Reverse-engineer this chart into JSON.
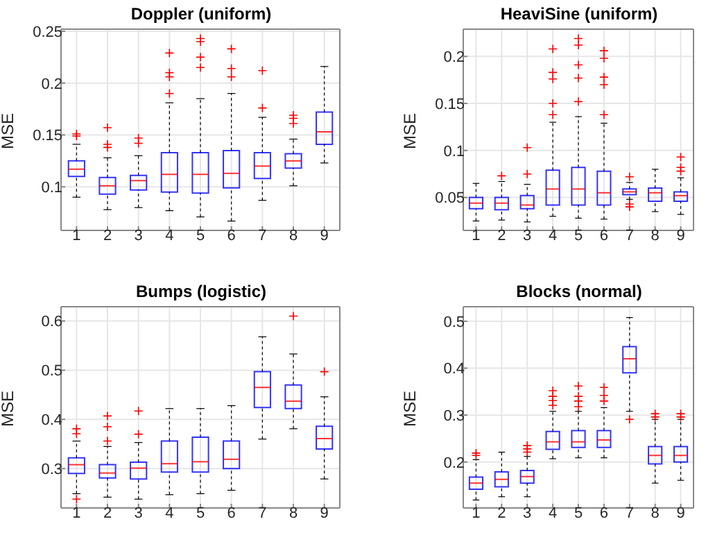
{
  "chart_data": [
    {
      "type": "box",
      "title": "Doppler (uniform)",
      "ylabel": "MSE",
      "categories": [
        "1",
        "2",
        "3",
        "4",
        "5",
        "6",
        "7",
        "8",
        "9"
      ],
      "ylim": [
        0.058,
        0.252
      ],
      "yticks": [
        0.1,
        0.15,
        0.2,
        0.25
      ],
      "grid": true,
      "marker": "cross",
      "series": [
        {
          "color": "#0000ff",
          "boxes": [
            {
              "low": 0.09,
              "q1": 0.11,
              "median": 0.117,
              "q3": 0.125,
              "high": 0.141,
              "outliers": [
                0.151,
                0.149
              ]
            },
            {
              "low": 0.078,
              "q1": 0.093,
              "median": 0.101,
              "q3": 0.109,
              "high": 0.128,
              "outliers": [
                0.157,
                0.141,
                0.138
              ]
            },
            {
              "low": 0.08,
              "q1": 0.097,
              "median": 0.106,
              "q3": 0.111,
              "high": 0.13,
              "outliers": [
                0.147,
                0.142
              ]
            },
            {
              "low": 0.077,
              "q1": 0.095,
              "median": 0.112,
              "q3": 0.133,
              "high": 0.181,
              "outliers": [
                0.229,
                0.21,
                0.206,
                0.19
              ]
            },
            {
              "low": 0.071,
              "q1": 0.094,
              "median": 0.112,
              "q3": 0.133,
              "high": 0.185,
              "outliers": [
                0.243,
                0.24,
                0.225,
                0.215
              ]
            },
            {
              "low": 0.067,
              "q1": 0.099,
              "median": 0.113,
              "q3": 0.135,
              "high": 0.19,
              "outliers": [
                0.233,
                0.214,
                0.206
              ]
            },
            {
              "low": 0.087,
              "q1": 0.108,
              "median": 0.12,
              "q3": 0.133,
              "high": 0.167,
              "outliers": [
                0.212,
                0.176
              ]
            },
            {
              "low": 0.101,
              "q1": 0.118,
              "median": 0.125,
              "q3": 0.132,
              "high": 0.146,
              "outliers": [
                0.169,
                0.166,
                0.161
              ]
            },
            {
              "low": 0.123,
              "q1": 0.141,
              "median": 0.153,
              "q3": 0.172,
              "high": 0.216
            }
          ]
        }
      ]
    },
    {
      "type": "box",
      "title": "HeaviSine (uniform)",
      "ylabel": "MSE",
      "categories": [
        "1",
        "2",
        "3",
        "4",
        "5",
        "6",
        "7",
        "8",
        "9"
      ],
      "ylim": [
        0.015,
        0.229
      ],
      "yticks": [
        0.05,
        0.1,
        0.15,
        0.2
      ],
      "grid": true,
      "marker": "cross",
      "series": [
        {
          "color": "#0000ff",
          "boxes": [
            {
              "low": 0.025,
              "q1": 0.038,
              "median": 0.044,
              "q3": 0.05,
              "high": 0.065
            },
            {
              "low": 0.026,
              "q1": 0.037,
              "median": 0.044,
              "q3": 0.05,
              "high": 0.067,
              "outliers": [
                0.073
              ]
            },
            {
              "low": 0.024,
              "q1": 0.038,
              "median": 0.042,
              "q3": 0.052,
              "high": 0.064,
              "outliers": [
                0.103,
                0.075
              ]
            },
            {
              "low": 0.03,
              "q1": 0.042,
              "median": 0.059,
              "q3": 0.079,
              "high": 0.13,
              "outliers": [
                0.208,
                0.183,
                0.176,
                0.15,
                0.138
              ]
            },
            {
              "low": 0.028,
              "q1": 0.042,
              "median": 0.059,
              "q3": 0.082,
              "high": 0.136,
              "outliers": [
                0.219,
                0.212,
                0.191,
                0.177,
                0.152
              ]
            },
            {
              "low": 0.027,
              "q1": 0.042,
              "median": 0.055,
              "q3": 0.078,
              "high": 0.129,
              "outliers": [
                0.206,
                0.198,
                0.178,
                0.17,
                0.138
              ]
            },
            {
              "low": 0.048,
              "q1": 0.053,
              "median": 0.056,
              "q3": 0.059,
              "high": 0.066,
              "outliers": [
                0.072,
                0.043,
                0.04
              ]
            },
            {
              "low": 0.035,
              "q1": 0.046,
              "median": 0.055,
              "q3": 0.06,
              "high": 0.08
            },
            {
              "low": 0.032,
              "q1": 0.046,
              "median": 0.052,
              "q3": 0.056,
              "high": 0.071,
              "outliers": [
                0.093,
                0.082,
                0.078
              ]
            }
          ]
        }
      ]
    },
    {
      "type": "box",
      "title": "Bumps (logistic)",
      "ylabel": "MSE",
      "categories": [
        "1",
        "2",
        "3",
        "4",
        "5",
        "6",
        "7",
        "8",
        "9"
      ],
      "ylim": [
        0.22,
        0.629
      ],
      "yticks": [
        0.3,
        0.4,
        0.5,
        0.6
      ],
      "grid": true,
      "marker": "cross",
      "series": [
        {
          "color": "#0000ff",
          "boxes": [
            {
              "low": 0.249,
              "q1": 0.29,
              "median": 0.308,
              "q3": 0.322,
              "high": 0.356,
              "outliers": [
                0.381,
                0.371,
                0.238
              ]
            },
            {
              "low": 0.242,
              "q1": 0.281,
              "median": 0.291,
              "q3": 0.308,
              "high": 0.345,
              "outliers": [
                0.407,
                0.385,
                0.356
              ]
            },
            {
              "low": 0.238,
              "q1": 0.279,
              "median": 0.301,
              "q3": 0.313,
              "high": 0.353,
              "outliers": [
                0.417,
                0.37
              ]
            },
            {
              "low": 0.247,
              "q1": 0.293,
              "median": 0.31,
              "q3": 0.356,
              "high": 0.422
            },
            {
              "low": 0.249,
              "q1": 0.293,
              "median": 0.314,
              "q3": 0.364,
              "high": 0.422
            },
            {
              "low": 0.256,
              "q1": 0.3,
              "median": 0.319,
              "q3": 0.356,
              "high": 0.428
            },
            {
              "low": 0.36,
              "q1": 0.424,
              "median": 0.465,
              "q3": 0.497,
              "high": 0.568
            },
            {
              "low": 0.381,
              "q1": 0.422,
              "median": 0.437,
              "q3": 0.47,
              "high": 0.533,
              "outliers": [
                0.61
              ]
            },
            {
              "low": 0.279,
              "q1": 0.34,
              "median": 0.361,
              "q3": 0.386,
              "high": 0.446,
              "outliers": [
                0.497
              ]
            }
          ]
        }
      ]
    },
    {
      "type": "box",
      "title": "Blocks (normal)",
      "ylabel": "MSE",
      "categories": [
        "1",
        "2",
        "3",
        "4",
        "5",
        "6",
        "7",
        "8",
        "9"
      ],
      "ylim": [
        0.102,
        0.531
      ],
      "yticks": [
        0.2,
        0.3,
        0.4,
        0.5
      ],
      "grid": true,
      "marker": "cross",
      "series": [
        {
          "color": "#0000ff",
          "boxes": [
            {
              "low": 0.119,
              "q1": 0.142,
              "median": 0.155,
              "q3": 0.168,
              "high": 0.205,
              "outliers": [
                0.219,
                0.214
              ]
            },
            {
              "low": 0.126,
              "q1": 0.147,
              "median": 0.163,
              "q3": 0.179,
              "high": 0.221
            },
            {
              "low": 0.126,
              "q1": 0.155,
              "median": 0.169,
              "q3": 0.182,
              "high": 0.212,
              "outliers": [
                0.235,
                0.228,
                0.221
              ]
            },
            {
              "low": 0.207,
              "q1": 0.227,
              "median": 0.243,
              "q3": 0.265,
              "high": 0.308,
              "outliers": [
                0.352,
                0.34,
                0.331,
                0.321
              ]
            },
            {
              "low": 0.209,
              "q1": 0.231,
              "median": 0.243,
              "q3": 0.267,
              "high": 0.308,
              "outliers": [
                0.362,
                0.34,
                0.33,
                0.318
              ]
            },
            {
              "low": 0.209,
              "q1": 0.231,
              "median": 0.247,
              "q3": 0.267,
              "high": 0.316,
              "outliers": [
                0.359,
                0.342,
                0.33
              ]
            },
            {
              "low": 0.308,
              "q1": 0.39,
              "median": 0.42,
              "q3": 0.446,
              "high": 0.508,
              "outliers": [
                0.291
              ]
            },
            {
              "low": 0.155,
              "q1": 0.196,
              "median": 0.214,
              "q3": 0.233,
              "high": 0.291,
              "outliers": [
                0.303,
                0.296
              ]
            },
            {
              "low": 0.161,
              "q1": 0.2,
              "median": 0.214,
              "q3": 0.233,
              "high": 0.291,
              "outliers": [
                0.303,
                0.296
              ]
            }
          ]
        }
      ]
    }
  ]
}
